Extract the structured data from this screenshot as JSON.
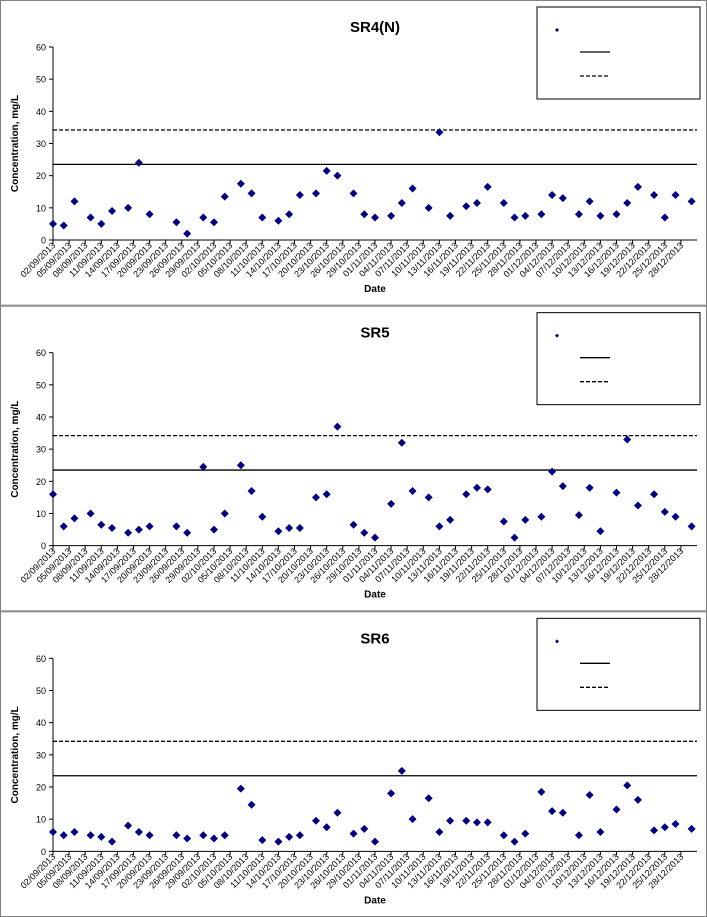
{
  "chart_data": [
    {
      "type": "scatter",
      "title": "SR4(N)",
      "xlabel": "Date",
      "ylabel": "Concentration, mg/L",
      "x": [
        "02/09/2013",
        "04/09/2013",
        "06/09/2013",
        "09/09/2013",
        "11/09/2013",
        "13/09/2013",
        "16/09/2013",
        "18/09/2013",
        "20/09/2013",
        "25/09/2013",
        "27/09/2013",
        "30/09/2013",
        "02/10/2013",
        "04/10/2013",
        "07/10/2013",
        "09/10/2013",
        "11/10/2013",
        "14/10/2013",
        "16/10/2013",
        "18/10/2013",
        "21/10/2013",
        "23/10/2013",
        "25/10/2013",
        "28/10/2013",
        "30/10/2013",
        "01/11/2013",
        "04/11/2013",
        "06/11/2013",
        "08/11/2013",
        "11/11/2013",
        "13/11/2013",
        "15/11/2013",
        "18/11/2013",
        "20/11/2013",
        "22/11/2013",
        "25/11/2013",
        "27/11/2013",
        "29/11/2013",
        "02/12/2013",
        "04/12/2013",
        "06/12/2013",
        "09/12/2013",
        "11/12/2013",
        "13/12/2013",
        "16/12/2013",
        "18/12/2013",
        "20/12/2013",
        "23/12/2013",
        "25/12/2013",
        "27/12/2013",
        "30/12/2013"
      ],
      "series": [
        {
          "color": "#000080",
          "values": [
            5,
            4.5,
            12,
            7,
            5,
            9,
            10,
            24,
            8,
            5.5,
            2,
            7,
            5.5,
            13.5,
            17.5,
            14.5,
            7,
            6,
            8,
            14,
            14.5,
            21.5,
            20,
            14.5,
            8,
            7,
            7.5,
            11.5,
            16,
            10,
            33.5,
            7.5,
            10.5,
            11.5,
            16.5,
            11.5,
            7,
            7.5,
            8,
            14,
            13,
            8,
            12,
            7.5,
            8,
            11.5,
            16.5,
            14,
            7,
            14,
            12
          ]
        }
      ],
      "hlines": [
        {
          "value": 23.5,
          "style": "solid"
        },
        {
          "value": 34.2,
          "style": "dashed"
        }
      ],
      "xlim": [
        "02/09/2013",
        "31/12/2013"
      ],
      "xticks": [
        "02/09/2013",
        "05/09/2013",
        "08/09/2013",
        "11/09/2013",
        "14/09/2013",
        "17/09/2013",
        "20/09/2013",
        "23/09/2013",
        "26/09/2013",
        "29/09/2013",
        "02/10/2013",
        "05/10/2013",
        "08/10/2013",
        "11/10/2013",
        "14/10/2013",
        "17/10/2013",
        "20/10/2013",
        "23/10/2013",
        "26/10/2013",
        "29/10/2013",
        "01/11/2013",
        "04/11/2013",
        "07/11/2013",
        "10/11/2013",
        "13/11/2013",
        "16/11/2013",
        "19/11/2013",
        "22/11/2013",
        "25/11/2013",
        "28/11/2013",
        "01/12/2013",
        "04/12/2013",
        "07/12/2013",
        "10/12/2013",
        "13/12/2013",
        "16/12/2013",
        "19/12/2013",
        "22/12/2013",
        "25/12/2013",
        "28/12/2013"
      ],
      "ylim": [
        0,
        60
      ],
      "yticks": [
        0,
        10,
        20,
        30,
        40,
        50,
        60
      ]
    },
    {
      "type": "scatter",
      "title": "SR5",
      "xlabel": "Date",
      "ylabel": "Concentration, mg/L",
      "x": [
        "02/09/2013",
        "04/09/2013",
        "06/09/2013",
        "09/09/2013",
        "11/09/2013",
        "13/09/2013",
        "16/09/2013",
        "18/09/2013",
        "20/09/2013",
        "25/09/2013",
        "27/09/2013",
        "30/09/2013",
        "02/10/2013",
        "04/10/2013",
        "07/10/2013",
        "09/10/2013",
        "11/10/2013",
        "14/10/2013",
        "16/10/2013",
        "18/10/2013",
        "21/10/2013",
        "23/10/2013",
        "25/10/2013",
        "28/10/2013",
        "30/10/2013",
        "01/11/2013",
        "04/11/2013",
        "06/11/2013",
        "08/11/2013",
        "11/11/2013",
        "13/11/2013",
        "15/11/2013",
        "18/11/2013",
        "20/11/2013",
        "22/11/2013",
        "25/11/2013",
        "27/11/2013",
        "29/11/2013",
        "02/12/2013",
        "04/12/2013",
        "06/12/2013",
        "09/12/2013",
        "11/12/2013",
        "13/12/2013",
        "16/12/2013",
        "18/12/2013",
        "20/12/2013",
        "23/12/2013",
        "25/12/2013",
        "27/12/2013",
        "30/12/2013"
      ],
      "series": [
        {
          "color": "#000080",
          "values": [
            16,
            6,
            8.5,
            10,
            6.5,
            5.5,
            4,
            5,
            6,
            6,
            4,
            24.5,
            5,
            10,
            25,
            17,
            9,
            4.5,
            5.5,
            5.5,
            15,
            16,
            37,
            6.5,
            4,
            2.5,
            13,
            32,
            17,
            15,
            6,
            8,
            16,
            18,
            17.5,
            7.5,
            2.5,
            8,
            9,
            23,
            18.5,
            9.5,
            18,
            4.5,
            16.5,
            33,
            12.5,
            16,
            10.5,
            9,
            6
          ]
        }
      ],
      "hlines": [
        {
          "value": 23.5,
          "style": "solid"
        },
        {
          "value": 34.2,
          "style": "dashed"
        }
      ],
      "xlim": [
        "02/09/2013",
        "31/12/2013"
      ],
      "xticks": [
        "02/09/2013",
        "05/09/2013",
        "08/09/2013",
        "11/09/2013",
        "14/09/2013",
        "17/09/2013",
        "20/09/2013",
        "23/09/2013",
        "26/09/2013",
        "29/09/2013",
        "02/10/2013",
        "05/10/2013",
        "08/10/2013",
        "11/10/2013",
        "14/10/2013",
        "17/10/2013",
        "20/10/2013",
        "23/10/2013",
        "26/10/2013",
        "29/10/2013",
        "01/11/2013",
        "04/11/2013",
        "07/11/2013",
        "10/11/2013",
        "13/11/2013",
        "16/11/2013",
        "19/11/2013",
        "22/11/2013",
        "25/11/2013",
        "28/11/2013",
        "01/12/2013",
        "04/12/2013",
        "07/12/2013",
        "10/12/2013",
        "13/12/2013",
        "16/12/2013",
        "19/12/2013",
        "22/12/2013",
        "25/12/2013",
        "28/12/2013"
      ],
      "ylim": [
        0,
        60
      ],
      "yticks": [
        0,
        10,
        20,
        30,
        40,
        50,
        60
      ]
    },
    {
      "type": "scatter",
      "title": "SR6",
      "xlabel": "Date",
      "ylabel": "Concentration, mg/L",
      "x": [
        "02/09/2013",
        "04/09/2013",
        "06/09/2013",
        "09/09/2013",
        "11/09/2013",
        "13/09/2013",
        "16/09/2013",
        "18/09/2013",
        "20/09/2013",
        "25/09/2013",
        "27/09/2013",
        "30/09/2013",
        "02/10/2013",
        "04/10/2013",
        "07/10/2013",
        "09/10/2013",
        "11/10/2013",
        "14/10/2013",
        "16/10/2013",
        "18/10/2013",
        "21/10/2013",
        "23/10/2013",
        "25/10/2013",
        "28/10/2013",
        "30/10/2013",
        "01/11/2013",
        "04/11/2013",
        "06/11/2013",
        "08/11/2013",
        "11/11/2013",
        "13/11/2013",
        "15/11/2013",
        "18/11/2013",
        "20/11/2013",
        "22/11/2013",
        "25/11/2013",
        "27/11/2013",
        "29/11/2013",
        "02/12/2013",
        "04/12/2013",
        "06/12/2013",
        "09/12/2013",
        "11/12/2013",
        "13/12/2013",
        "16/12/2013",
        "18/12/2013",
        "20/12/2013",
        "23/12/2013",
        "25/12/2013",
        "27/12/2013",
        "30/12/2013"
      ],
      "series": [
        {
          "color": "#000080",
          "values": [
            6,
            5,
            6,
            5,
            4.5,
            3,
            8,
            6,
            5,
            5,
            4,
            5,
            4,
            5,
            19.5,
            14.5,
            3.5,
            3,
            4.5,
            5,
            9.5,
            7.5,
            12,
            5.5,
            7,
            3,
            18,
            25,
            10,
            16.5,
            6,
            9.5,
            9.5,
            9,
            9,
            5,
            3,
            5.5,
            18.5,
            12.5,
            12,
            5,
            17.5,
            6,
            13,
            20.5,
            16,
            6.5,
            7.5,
            8.5,
            7
          ]
        }
      ],
      "hlines": [
        {
          "value": 23.5,
          "style": "solid"
        },
        {
          "value": 34.2,
          "style": "dashed"
        }
      ],
      "xlim": [
        "02/09/2013",
        "31/12/2013"
      ],
      "xticks": [
        "02/09/2013",
        "05/09/2013",
        "08/09/2013",
        "11/09/2013",
        "14/09/2013",
        "17/09/2013",
        "20/09/2013",
        "23/09/2013",
        "26/09/2013",
        "29/09/2013",
        "02/10/2013",
        "05/10/2013",
        "08/10/2013",
        "11/10/2013",
        "14/10/2013",
        "17/10/2013",
        "20/10/2013",
        "23/10/2013",
        "26/10/2013",
        "29/10/2013",
        "01/11/2013",
        "04/11/2013",
        "07/11/2013",
        "10/11/2013",
        "13/11/2013",
        "16/11/2013",
        "19/11/2013",
        "22/11/2013",
        "25/11/2013",
        "28/11/2013",
        "01/12/2013",
        "04/12/2013",
        "07/12/2013",
        "10/12/2013",
        "13/12/2013",
        "16/12/2013",
        "19/12/2013",
        "22/12/2013",
        "25/12/2013",
        "28/12/2013"
      ],
      "ylim": [
        0,
        60
      ],
      "yticks": [
        0,
        10,
        20,
        30,
        40,
        50,
        60
      ]
    }
  ]
}
